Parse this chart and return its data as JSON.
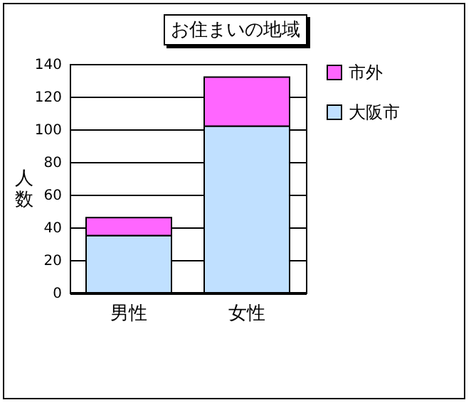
{
  "chart_data": {
    "type": "bar",
    "title": "お住まいの地域",
    "ylabel": "人数",
    "categories": [
      "男性",
      "女性"
    ],
    "stacked": true,
    "series": [
      {
        "name": "大阪市",
        "color": "#c0e0ff",
        "values": [
          35,
          102
        ]
      },
      {
        "name": "市外",
        "color": "#ff66ff",
        "values": [
          11,
          30
        ]
      }
    ],
    "ylim": [
      0,
      140
    ],
    "yticks": [
      0,
      20,
      40,
      60,
      80,
      100,
      120,
      140
    ],
    "grid": "y",
    "legend": "right"
  }
}
